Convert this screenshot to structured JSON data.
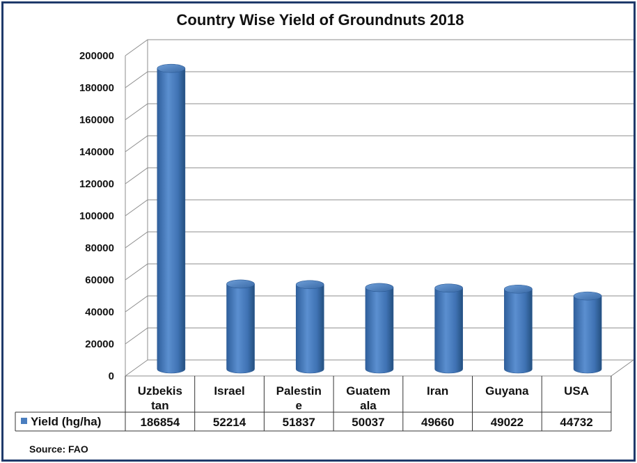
{
  "chart_data": {
    "type": "bar",
    "title": "Country Wise Yield of Groundnuts 2018",
    "categories": [
      "Uzbekistan",
      "Israel",
      "Palestine",
      "Guatemala",
      "Iran",
      "Guyana",
      "USA"
    ],
    "category_display": [
      [
        "Uzbekis",
        "tan"
      ],
      [
        "Israel"
      ],
      [
        "Palestin",
        "e"
      ],
      [
        "Guatem",
        "ala"
      ],
      [
        "Iran"
      ],
      [
        "Guyana"
      ],
      [
        "USA"
      ]
    ],
    "series": [
      {
        "name": "Yield (hg/ha)",
        "values": [
          186854,
          52214,
          51837,
          50037,
          49660,
          49022,
          44732
        ],
        "color": "#4a7ebf"
      }
    ],
    "value_labels": [
      "186854",
      "52214",
      "51837",
      "50037",
      "49660",
      "49022",
      "44732"
    ],
    "yticks": [
      "0",
      "20000",
      "40000",
      "60000",
      "80000",
      "100000",
      "120000",
      "140000",
      "160000",
      "180000",
      "200000"
    ],
    "ylim": [
      0,
      200000
    ],
    "grid": true,
    "style": "3d-cylinder",
    "data_table": true
  },
  "source": "Source: FAO",
  "colors": {
    "frame": "#1f3a6b",
    "bar": "#4a7ebf",
    "bar_dark": "#2c5a94",
    "grid": "#8c8c8c"
  }
}
